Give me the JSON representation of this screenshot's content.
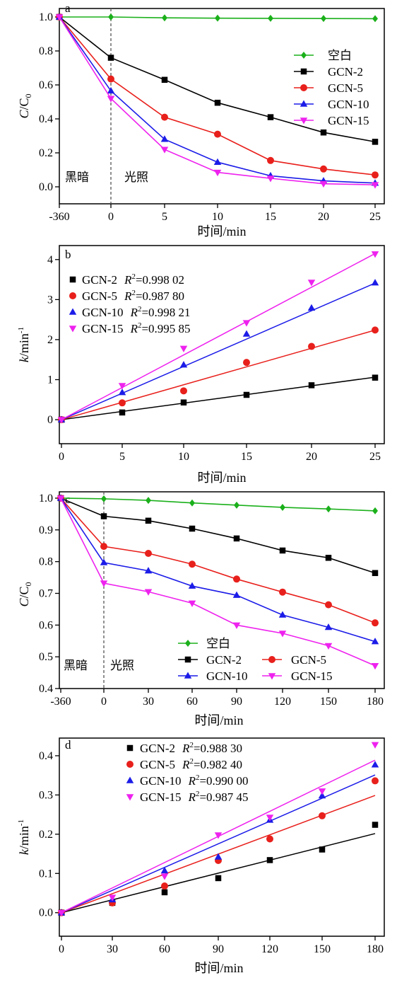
{
  "chart_data": [
    {
      "type": "line",
      "panel_label": "a",
      "xlabel": "时间/min",
      "ylabel_main": "C",
      "ylabel_sub": "0",
      "ylabel_sep": "/C",
      "x_ticks": [
        "-360",
        "0",
        "5",
        "10",
        "15",
        "20",
        "25"
      ],
      "x_values": [
        -360,
        0,
        5,
        10,
        15,
        20,
        25
      ],
      "ylim": [
        -0.1,
        1.05
      ],
      "y_ticks": [
        "0.0",
        "0.2",
        "0.4",
        "0.6",
        "0.8",
        "1.0"
      ],
      "y_tick_values": [
        0,
        0.2,
        0.4,
        0.6,
        0.8,
        1.0
      ],
      "annotations": {
        "dark": "黑暗",
        "light": "光照"
      },
      "series": [
        {
          "name": "空白",
          "color": "#1bb01b",
          "marker": "diamond",
          "values": [
            1.0,
            1.0,
            0.995,
            0.993,
            0.992,
            0.991,
            0.99
          ]
        },
        {
          "name": "GCN-2",
          "color": "#000000",
          "marker": "square",
          "values": [
            1.0,
            0.76,
            0.63,
            0.495,
            0.41,
            0.32,
            0.265
          ]
        },
        {
          "name": "GCN-5",
          "color": "#e8201c",
          "marker": "circle",
          "values": [
            1.0,
            0.635,
            0.41,
            0.31,
            0.155,
            0.105,
            0.07
          ]
        },
        {
          "name": "GCN-10",
          "color": "#1c1ce8",
          "marker": "triangle-up",
          "values": [
            1.0,
            0.565,
            0.28,
            0.145,
            0.065,
            0.035,
            0.022
          ]
        },
        {
          "name": "GCN-15",
          "color": "#ee22ee",
          "marker": "triangle-down",
          "values": [
            1.0,
            0.52,
            0.22,
            0.085,
            0.05,
            0.018,
            0.012
          ]
        }
      ]
    },
    {
      "type": "scatter",
      "panel_label": "b",
      "xlabel": "时间/min",
      "ylabel_main": "k",
      "ylabel_rest": "/min",
      "ylabel_sup": "-1",
      "x_ticks": [
        "0",
        "5",
        "10",
        "15",
        "20",
        "25"
      ],
      "xlim": [
        0,
        25
      ],
      "ylim": [
        -0.6,
        4.35
      ],
      "y_ticks": [
        "0",
        "1",
        "2",
        "3",
        "4"
      ],
      "y_tick_values": [
        0,
        1,
        2,
        3,
        4
      ],
      "x": [
        0,
        5,
        10,
        15,
        20,
        25
      ],
      "series": [
        {
          "name": "GCN-2",
          "r2": "=0.998 02",
          "color": "#000000",
          "marker": "square",
          "values": [
            0,
            0.18,
            0.43,
            0.62,
            0.86,
            1.05
          ],
          "fit_slope": 0.0425
        },
        {
          "name": "GCN-5",
          "r2": "=0.987 80",
          "color": "#e8201c",
          "marker": "circle",
          "values": [
            0,
            0.42,
            0.72,
            1.43,
            1.83,
            2.24
          ],
          "fit_slope": 0.0895
        },
        {
          "name": "GCN-10",
          "r2": "=0.998 21",
          "color": "#1c1ce8",
          "marker": "triangle-up",
          "values": [
            0,
            0.68,
            1.37,
            2.14,
            2.79,
            3.42
          ],
          "fit_slope": 0.1365
        },
        {
          "name": "GCN-15",
          "r2": "=0.995 85",
          "color": "#ee22ee",
          "marker": "triangle-down",
          "values": [
            0,
            0.85,
            1.78,
            2.42,
            3.43,
            4.14
          ],
          "fit_slope": 0.166
        }
      ]
    },
    {
      "type": "line",
      "panel_label": "c",
      "xlabel": "时间/min",
      "ylabel_main": "C",
      "ylabel_sub": "0",
      "ylabel_sep": "/C",
      "x_ticks": [
        "-360",
        "0",
        "30",
        "60",
        "90",
        "120",
        "150",
        "180"
      ],
      "x_values": [
        -360,
        0,
        30,
        60,
        90,
        120,
        150,
        180
      ],
      "ylim": [
        0.4,
        1.02
      ],
      "y_ticks": [
        "0.4",
        "0.5",
        "0.6",
        "0.7",
        "0.8",
        "0.9",
        "1.0"
      ],
      "y_tick_values": [
        0.4,
        0.5,
        0.6,
        0.7,
        0.8,
        0.9,
        1.0
      ],
      "annotations": {
        "dark": "黑暗",
        "light": "光照"
      },
      "series": [
        {
          "name": "空白",
          "color": "#1bb01b",
          "marker": "diamond",
          "values": [
            1.0,
            0.998,
            0.993,
            0.985,
            0.978,
            0.971,
            0.966,
            0.96
          ]
        },
        {
          "name": "GCN-2",
          "color": "#000000",
          "marker": "square",
          "values": [
            1.0,
            0.943,
            0.929,
            0.904,
            0.873,
            0.835,
            0.812,
            0.764
          ]
        },
        {
          "name": "GCN-5",
          "color": "#e8201c",
          "marker": "circle",
          "values": [
            1.0,
            0.848,
            0.826,
            0.792,
            0.745,
            0.704,
            0.664,
            0.607
          ]
        },
        {
          "name": "GCN-10",
          "color": "#1c1ce8",
          "marker": "triangle-up",
          "values": [
            1.0,
            0.797,
            0.771,
            0.723,
            0.694,
            0.632,
            0.593,
            0.548
          ]
        },
        {
          "name": "GCN-15",
          "color": "#ee22ee",
          "marker": "triangle-down",
          "values": [
            1.0,
            0.732,
            0.705,
            0.669,
            0.6,
            0.574,
            0.535,
            0.472
          ]
        }
      ]
    },
    {
      "type": "scatter",
      "panel_label": "d",
      "xlabel": "时间/min",
      "ylabel_main": "k",
      "ylabel_rest": "/min",
      "ylabel_sup": "-1",
      "x_ticks": [
        "0",
        "30",
        "60",
        "90",
        "120",
        "150",
        "180"
      ],
      "xlim": [
        0,
        180
      ],
      "ylim": [
        -0.06,
        0.445
      ],
      "y_ticks": [
        "0.0",
        "0.1",
        "0.2",
        "0.3",
        "0.4"
      ],
      "y_tick_values": [
        0,
        0.1,
        0.2,
        0.3,
        0.4
      ],
      "x": [
        0,
        30,
        60,
        90,
        120,
        150,
        180
      ],
      "series": [
        {
          "name": "GCN-2",
          "r2": "=0.988 30",
          "color": "#000000",
          "marker": "square",
          "values": [
            0,
            0.025,
            0.052,
            0.088,
            0.134,
            0.161,
            0.224
          ],
          "fit_slope": 0.00112
        },
        {
          "name": "GCN-5",
          "r2": "=0.982 40",
          "color": "#e8201c",
          "marker": "circle",
          "values": [
            0,
            0.025,
            0.068,
            0.133,
            0.188,
            0.247,
            0.336
          ],
          "fit_slope": 0.00166
        },
        {
          "name": "GCN-10",
          "r2": "=0.990 00",
          "color": "#1c1ce8",
          "marker": "triangle-up",
          "values": [
            0,
            0.033,
            0.107,
            0.142,
            0.236,
            0.298,
            0.377
          ],
          "fit_slope": 0.00195
        },
        {
          "name": "GCN-15",
          "r2": "=0.987 45",
          "color": "#ee22ee",
          "marker": "triangle-down",
          "values": [
            0,
            0.039,
            0.093,
            0.198,
            0.243,
            0.31,
            0.428
          ],
          "fit_slope": 0.00216
        }
      ]
    }
  ]
}
